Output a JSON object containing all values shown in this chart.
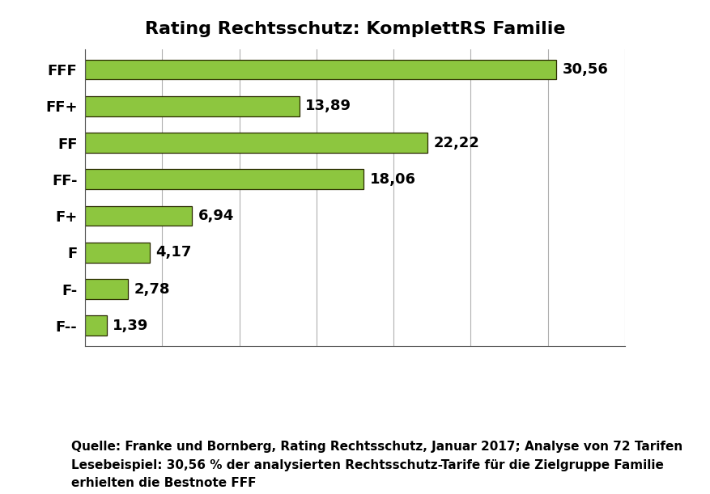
{
  "title": "Rating Rechtsschutz: KomplettRS Familie",
  "categories": [
    "FFF",
    "FF+",
    "FF",
    "FF-",
    "F+",
    "F",
    "F-",
    "F--"
  ],
  "values": [
    30.56,
    13.89,
    22.22,
    18.06,
    6.94,
    4.17,
    2.78,
    1.39
  ],
  "labels": [
    "30,56",
    "13,89",
    "22,22",
    "18,06",
    "6,94",
    "4,17",
    "2,78",
    "1,39"
  ],
  "bar_color": "#8dc63f",
  "bar_edge_color": "#2a2a00",
  "background_color": "#ffffff",
  "title_fontsize": 16,
  "tick_fontsize": 13,
  "value_fontsize": 13,
  "footer_text": "Quelle: Franke und Bornberg, Rating Rechtsschutz, Januar 2017; Analyse von 72 Tarifen\nLesebeispiel: 30,56 % der analysierten Rechtsschutz-Tarife für die Zielgruppe Familie\nerhielten die Bestnote FFF",
  "footer_fontsize": 11,
  "xlim": [
    0,
    35
  ],
  "grid_x_ticks": [
    0,
    5,
    10,
    15,
    20,
    25,
    30,
    35
  ]
}
